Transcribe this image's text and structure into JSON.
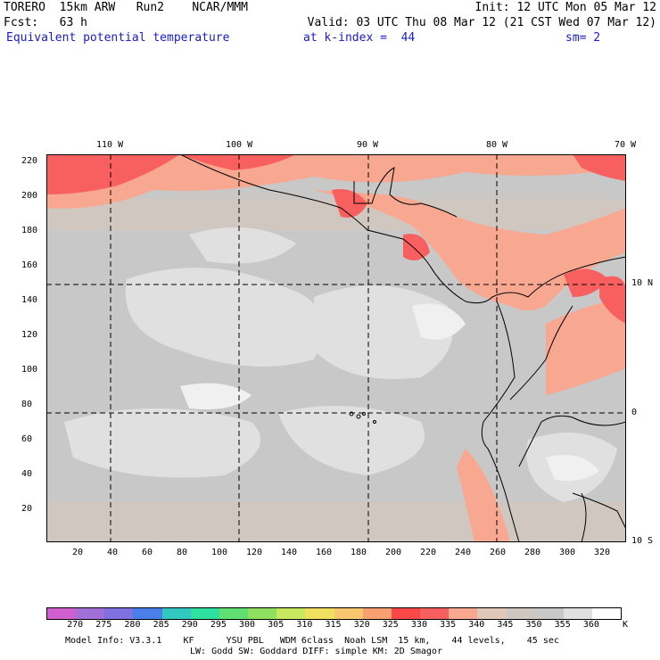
{
  "header": {
    "line1_left": "TORERO  15km ARW   Run2    NCAR/MMM",
    "line1_right": "Init: 12 UTC Mon 05 Mar 12",
    "line2_left": "Fcst:   63 h",
    "line2_right": "Valid: 03 UTC Thu 08 Mar 12 (21 CST Wed 07 Mar 12)",
    "line3_field": "Equivalent potential temperature",
    "line3_level": "at k-index =  44",
    "line3_sm": "sm= 2"
  },
  "axes": {
    "lon_labels": [
      "110 W",
      "100 W",
      "90 W",
      "80 W",
      "70 W"
    ],
    "lat_labels": [
      "10 N",
      "0",
      "10 S"
    ],
    "y_ticks": [
      "220",
      "200",
      "180",
      "160",
      "140",
      "120",
      "100",
      "80",
      "60",
      "40",
      "20"
    ],
    "x_ticks": [
      "20",
      "40",
      "60",
      "80",
      "100",
      "120",
      "140",
      "160",
      "180",
      "200",
      "220",
      "240",
      "260",
      "280",
      "300",
      "320"
    ]
  },
  "colorbar": {
    "labels": [
      "270",
      "275",
      "280",
      "285",
      "290",
      "295",
      "300",
      "305",
      "310",
      "315",
      "320",
      "325",
      "330",
      "335",
      "340",
      "345",
      "350",
      "355",
      "360"
    ],
    "unit": "K",
    "colors": [
      "#d060d0",
      "#a070d8",
      "#8070e0",
      "#4a7ee8",
      "#30c8c0",
      "#30e0a0",
      "#60e070",
      "#90e060",
      "#c8e860",
      "#f0e060",
      "#f8c870",
      "#f8a070",
      "#f84848",
      "#f86060",
      "#f8a890",
      "#e0c8b8",
      "#d0c8c0",
      "#c8c8c8",
      "#e0e0e0",
      "#ffffff"
    ]
  },
  "footer": {
    "line1": "Model Info: V3.3.1    KF      YSU PBL   WDM 6class  Noah LSM  15 km,    44 levels,    45 sec",
    "line2": "LW: Godd SW: Goddard DIFF: simple KM: 2D Smagor"
  }
}
